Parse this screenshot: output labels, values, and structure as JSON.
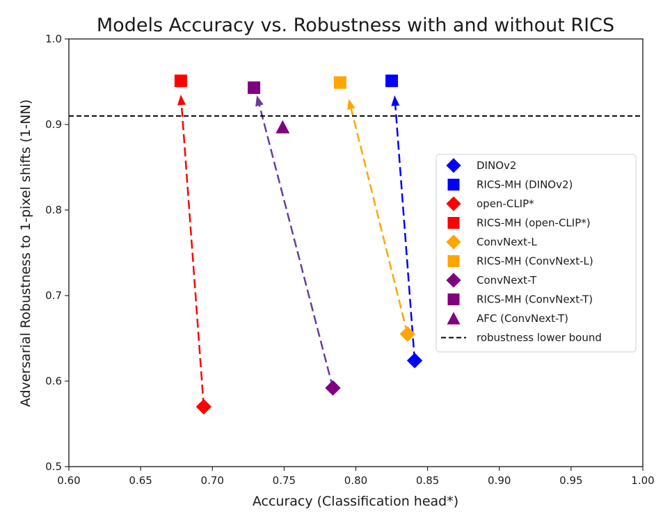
{
  "chart_data": {
    "type": "scatter",
    "title": "Models Accuracy vs. Robustness with and without RICS",
    "xlabel": "Accuracy (Classification head*)",
    "ylabel": "Adversarial Robustness to 1-pixel shifts (1-NN)",
    "xlim": [
      0.6,
      1.0
    ],
    "ylim": [
      0.5,
      1.0
    ],
    "xticks": [
      "0.60",
      "0.65",
      "0.70",
      "0.75",
      "0.80",
      "0.85",
      "0.90",
      "0.95",
      "1.00"
    ],
    "yticks": [
      "0.5",
      "0.6",
      "0.7",
      "0.8",
      "0.9",
      "1.0"
    ],
    "grid": false,
    "legend_position": "center-right",
    "series": [
      {
        "name": "DINOv2",
        "marker": "diamond",
        "color": "#0000ff",
        "x": 0.841,
        "y": 0.624
      },
      {
        "name": "RICS-MH (DINOv2)",
        "marker": "square",
        "color": "#0000ff",
        "x": 0.825,
        "y": 0.951
      },
      {
        "name": "open-CLIP*",
        "marker": "diamond",
        "color": "#ff0000",
        "x": 0.694,
        "y": 0.57
      },
      {
        "name": "RICS-MH (open-CLIP*)",
        "marker": "square",
        "color": "#ff0000",
        "x": 0.678,
        "y": 0.951
      },
      {
        "name": "ConvNext-L",
        "marker": "diamond",
        "color": "#ffa500",
        "x": 0.836,
        "y": 0.655
      },
      {
        "name": "RICS-MH (ConvNext-L)",
        "marker": "square",
        "color": "#ffa500",
        "x": 0.789,
        "y": 0.949
      },
      {
        "name": "ConvNext-T",
        "marker": "diamond",
        "color": "#800080",
        "x": 0.784,
        "y": 0.592
      },
      {
        "name": "RICS-MH (ConvNext-T)",
        "marker": "square",
        "color": "#800080",
        "x": 0.729,
        "y": 0.943
      },
      {
        "name": "AFC (ConvNext-T)",
        "marker": "triangle",
        "color": "#800080",
        "x": 0.749,
        "y": 0.897
      }
    ],
    "arrows": [
      {
        "from": [
          0.694,
          0.57
        ],
        "to": [
          0.678,
          0.935
        ],
        "color": "#ff0000"
      },
      {
        "from": [
          0.784,
          0.592
        ],
        "to": [
          0.731,
          0.934
        ],
        "color": "#6a3d9a"
      },
      {
        "from": [
          0.836,
          0.655
        ],
        "to": [
          0.795,
          0.93
        ],
        "color": "#ffa500"
      },
      {
        "from": [
          0.841,
          0.624
        ],
        "to": [
          0.827,
          0.934
        ],
        "color": "#0000ff"
      }
    ],
    "reference_lines": [
      {
        "name": "robustness lower bound",
        "orientation": "horizontal",
        "y": 0.91,
        "style": "dashed",
        "color": "#000000"
      }
    ]
  }
}
